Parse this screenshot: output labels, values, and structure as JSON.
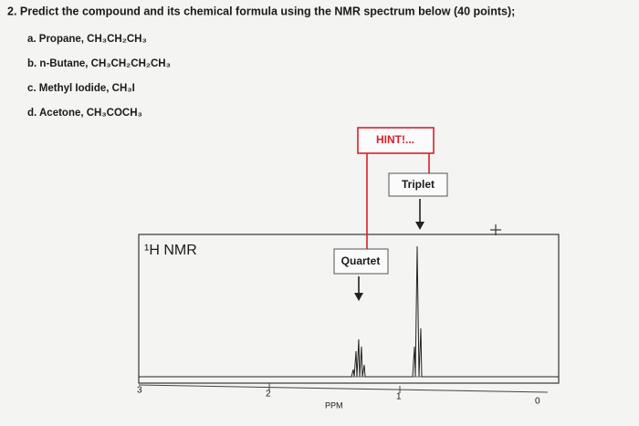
{
  "question": {
    "title": "2. Predict the compound and its chemical formula using the NMR spectrum below (40 points);",
    "options": [
      {
        "label": "a. Propane, CH₃CH₂CH₃"
      },
      {
        "label": "b. n-Butane, CH₃CH₂CH₂CH₃"
      },
      {
        "label": "c. Methyl Iodide, CH₃I"
      },
      {
        "label": "d. Acetone, CH₃COCH₃"
      }
    ]
  },
  "spectrum": {
    "title": "¹H NMR",
    "hint": "HINT!...",
    "triplet": "Triplet",
    "quartet": "Quartet",
    "axis_label": "PPM",
    "ticks": [
      "3",
      "2",
      "1",
      "0"
    ]
  }
}
